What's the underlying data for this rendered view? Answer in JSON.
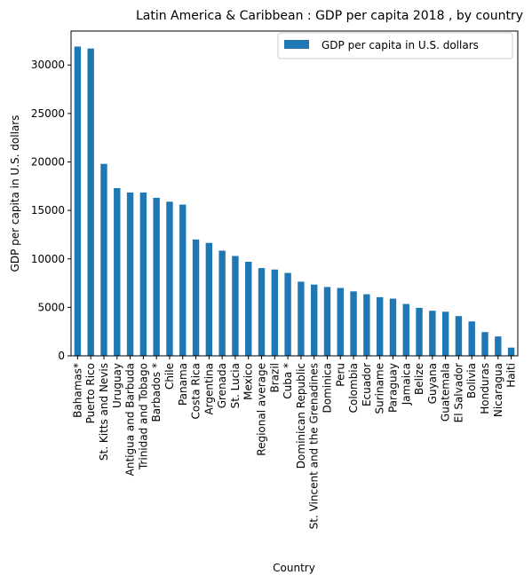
{
  "chart_data": {
    "type": "bar",
    "title": "Latin America & Caribbean : GDP per capita 2018 , by country",
    "xlabel": "Country",
    "ylabel": "GDP per capita in U.S. dollars",
    "ylim": [
      0,
      33500
    ],
    "yticks": [
      0,
      5000,
      10000,
      15000,
      20000,
      25000,
      30000
    ],
    "grid": false,
    "legend_position": "top-right",
    "bar_color": "#1f77b4",
    "categories": [
      "Bahamas*",
      "Puerto Rico",
      "St. Kitts and Nevis",
      "Uruguay",
      "Antigua and Barbuda",
      "Trinidad and Tobago",
      "Barbados *",
      "Chile",
      "Panama",
      "Costa Rica",
      "Argentina",
      "Grenada",
      "St. Lucia",
      "Mexico",
      "Regional average",
      "Brazil",
      "Cuba *",
      "Dominican Republic",
      "St. Vincent and the Grenadines",
      "Dominica",
      "Peru",
      "Colombia",
      "Ecuador",
      "Suriname",
      "Paraguay",
      "Jamaica",
      "Belize",
      "Guyana",
      "Guatemala",
      "El Salvador",
      "Bolivia",
      "Honduras",
      "Nicaragua",
      "Haiti"
    ],
    "series": [
      {
        "name": "GDP per capita in U.S. dollars",
        "values": [
          31900,
          31700,
          19800,
          17300,
          16850,
          16850,
          16300,
          15900,
          15600,
          12000,
          11650,
          10850,
          10300,
          9700,
          9050,
          8900,
          8550,
          7650,
          7350,
          7100,
          7000,
          6650,
          6350,
          6050,
          5900,
          5350,
          4950,
          4650,
          4550,
          4100,
          3550,
          2450,
          2000,
          850
        ]
      }
    ]
  }
}
